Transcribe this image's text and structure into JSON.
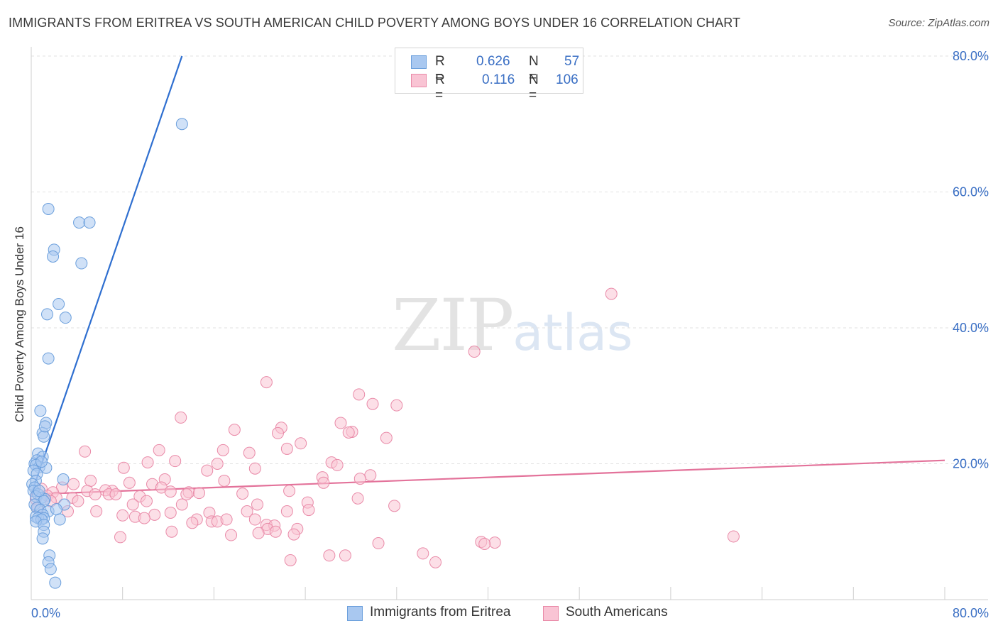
{
  "header": {
    "title": "IMMIGRANTS FROM ERITREA VS SOUTH AMERICAN CHILD POVERTY AMONG BOYS UNDER 16 CORRELATION CHART",
    "source": "Source: ZipAtlas.com"
  },
  "watermark": {
    "zip": "ZIP",
    "atlas": "atlas"
  },
  "legend": {
    "rows": [
      {
        "r_label": "R =",
        "r_value": "0.626",
        "n_label": "N =",
        "n_value": "57",
        "color": "#a9c8f0",
        "border": "#6b9fdc"
      },
      {
        "r_label": "R =",
        "r_value": "0.116",
        "n_label": "N =",
        "n_value": "106",
        "color": "#f9c4d4",
        "border": "#e98aa8"
      }
    ]
  },
  "bottom_legend": [
    {
      "label": "Immigrants from Eritrea",
      "color": "#a9c8f0",
      "border": "#6b9fdc"
    },
    {
      "label": "South Americans",
      "color": "#f9c4d4",
      "border": "#e98aa8"
    }
  ],
  "chart_data": {
    "type": "scatter",
    "title": "IMMIGRANTS FROM ERITREA VS SOUTH AMERICAN CHILD POVERTY AMONG BOYS UNDER 16 CORRELATION CHART",
    "xlabel": "",
    "ylabel": "Child Poverty Among Boys Under 16",
    "xlim": [
      0,
      80
    ],
    "ylim": [
      0,
      80
    ],
    "x_tick_labels": [
      "0.0%",
      "80.0%"
    ],
    "y_tick_labels": [
      "20.0%",
      "40.0%",
      "60.0%",
      "80.0%"
    ],
    "y_ticks": [
      20,
      40,
      60,
      80
    ],
    "grid": true,
    "legend_position": "top-center",
    "series": [
      {
        "name": "Immigrants from Eritrea",
        "color": "#6b9fdc",
        "fill": "#a9c8f0",
        "trend": {
          "x": [
            0,
            13.2
          ],
          "y": [
            15.5,
            80
          ]
        },
        "points": [
          [
            13.2,
            70.0
          ],
          [
            1.5,
            57.5
          ],
          [
            4.2,
            55.5
          ],
          [
            5.1,
            55.5
          ],
          [
            2.0,
            51.5
          ],
          [
            1.9,
            50.5
          ],
          [
            4.4,
            49.5
          ],
          [
            2.4,
            43.5
          ],
          [
            1.4,
            42.0
          ],
          [
            3.0,
            41.5
          ],
          [
            1.5,
            35.5
          ],
          [
            0.8,
            27.8
          ],
          [
            1.3,
            26.0
          ],
          [
            1.0,
            24.5
          ],
          [
            1.1,
            24.0
          ],
          [
            1.2,
            25.5
          ],
          [
            0.6,
            21.5
          ],
          [
            1.0,
            21.0
          ],
          [
            0.5,
            20.5
          ],
          [
            0.3,
            20.0
          ],
          [
            0.7,
            19.5
          ],
          [
            0.4,
            19.8
          ],
          [
            1.3,
            19.4
          ],
          [
            0.2,
            19.0
          ],
          [
            0.5,
            18.5
          ],
          [
            0.4,
            17.5
          ],
          [
            2.8,
            17.7
          ],
          [
            0.1,
            17.0
          ],
          [
            0.3,
            16.5
          ],
          [
            0.2,
            16.0
          ],
          [
            0.6,
            15.5
          ],
          [
            0.9,
            15.0
          ],
          [
            0.4,
            15.2
          ],
          [
            1.2,
            14.8
          ],
          [
            1.1,
            14.5
          ],
          [
            0.3,
            14.0
          ],
          [
            2.9,
            14.0
          ],
          [
            0.5,
            13.5
          ],
          [
            0.8,
            13.2
          ],
          [
            1.5,
            13.0
          ],
          [
            2.2,
            13.3
          ],
          [
            1.0,
            12.5
          ],
          [
            0.4,
            12.2
          ],
          [
            0.6,
            12.0
          ],
          [
            1.1,
            12.0
          ],
          [
            0.9,
            11.8
          ],
          [
            0.4,
            11.5
          ],
          [
            2.5,
            11.8
          ],
          [
            1.1,
            11.0
          ],
          [
            1.1,
            10.0
          ],
          [
            1.0,
            9.0
          ],
          [
            1.6,
            6.5
          ],
          [
            1.5,
            5.5
          ],
          [
            1.7,
            4.5
          ],
          [
            2.1,
            2.5
          ],
          [
            0.7,
            16.0
          ],
          [
            0.9,
            20.3
          ]
        ]
      },
      {
        "name": "South Americans",
        "color": "#e98aa8",
        "fill": "#f9c4d4",
        "trend": {
          "x": [
            0,
            80
          ],
          "y": [
            15.5,
            20.5
          ]
        },
        "points": [
          [
            50.8,
            45.0
          ],
          [
            38.8,
            36.5
          ],
          [
            20.6,
            32.0
          ],
          [
            28.7,
            30.2
          ],
          [
            29.9,
            28.8
          ],
          [
            32.0,
            28.6
          ],
          [
            13.1,
            26.8
          ],
          [
            27.1,
            26.0
          ],
          [
            21.9,
            25.3
          ],
          [
            17.8,
            25.0
          ],
          [
            21.6,
            24.5
          ],
          [
            28.1,
            24.7
          ],
          [
            27.8,
            24.6
          ],
          [
            31.1,
            23.8
          ],
          [
            23.6,
            23.0
          ],
          [
            4.7,
            21.8
          ],
          [
            11.2,
            22.0
          ],
          [
            16.8,
            22.0
          ],
          [
            19.1,
            21.6
          ],
          [
            22.4,
            22.2
          ],
          [
            10.2,
            20.2
          ],
          [
            12.6,
            20.4
          ],
          [
            16.3,
            20.0
          ],
          [
            26.3,
            20.2
          ],
          [
            26.8,
            19.8
          ],
          [
            8.1,
            19.4
          ],
          [
            15.4,
            19.0
          ],
          [
            19.6,
            19.3
          ],
          [
            29.7,
            18.3
          ],
          [
            25.5,
            18.0
          ],
          [
            28.8,
            17.8
          ],
          [
            5.2,
            17.5
          ],
          [
            11.7,
            17.7
          ],
          [
            16.9,
            17.5
          ],
          [
            25.6,
            17.2
          ],
          [
            10.6,
            17.0
          ],
          [
            8.6,
            17.2
          ],
          [
            3.7,
            17.0
          ],
          [
            2.7,
            16.5
          ],
          [
            0.9,
            16.3
          ],
          [
            1.9,
            15.8
          ],
          [
            4.9,
            16.0
          ],
          [
            7.1,
            16.0
          ],
          [
            6.5,
            16.1
          ],
          [
            6.8,
            15.5
          ],
          [
            11.4,
            16.5
          ],
          [
            13.8,
            15.8
          ],
          [
            14.7,
            15.7
          ],
          [
            12.2,
            15.9
          ],
          [
            22.6,
            16.0
          ],
          [
            1.4,
            15.3
          ],
          [
            2.2,
            15.0
          ],
          [
            3.6,
            15.0
          ],
          [
            5.6,
            15.5
          ],
          [
            7.4,
            15.5
          ],
          [
            9.5,
            15.2
          ],
          [
            13.6,
            15.5
          ],
          [
            18.5,
            15.6
          ],
          [
            0.4,
            14.8
          ],
          [
            1.7,
            14.5
          ],
          [
            4.1,
            14.5
          ],
          [
            8.9,
            14.0
          ],
          [
            10.1,
            14.5
          ],
          [
            13.2,
            14.0
          ],
          [
            19.8,
            14.0
          ],
          [
            24.2,
            14.3
          ],
          [
            28.6,
            14.9
          ],
          [
            31.8,
            13.8
          ],
          [
            0.6,
            13.5
          ],
          [
            3.2,
            13.0
          ],
          [
            5.7,
            13.0
          ],
          [
            10.8,
            12.5
          ],
          [
            12.2,
            12.8
          ],
          [
            15.6,
            12.8
          ],
          [
            18.9,
            13.0
          ],
          [
            22.4,
            13.0
          ],
          [
            24.3,
            13.2
          ],
          [
            9.1,
            12.2
          ],
          [
            9.9,
            12.0
          ],
          [
            14.5,
            11.8
          ],
          [
            15.8,
            11.5
          ],
          [
            16.3,
            11.5
          ],
          [
            17.1,
            11.8
          ],
          [
            19.6,
            11.8
          ],
          [
            14.1,
            11.3
          ],
          [
            20.6,
            11.0
          ],
          [
            21.3,
            10.9
          ],
          [
            8.0,
            12.4
          ],
          [
            20.7,
            10.4
          ],
          [
            21.4,
            10.0
          ],
          [
            23.3,
            10.4
          ],
          [
            12.3,
            10.0
          ],
          [
            17.5,
            9.5
          ],
          [
            19.9,
            9.8
          ],
          [
            23.0,
            9.6
          ],
          [
            7.8,
            9.2
          ],
          [
            30.4,
            8.3
          ],
          [
            40.6,
            8.4
          ],
          [
            39.4,
            8.5
          ],
          [
            39.7,
            8.2
          ],
          [
            61.5,
            9.3
          ],
          [
            26.1,
            6.5
          ],
          [
            27.5,
            6.5
          ],
          [
            34.3,
            6.8
          ],
          [
            22.7,
            5.8
          ],
          [
            35.4,
            5.5
          ]
        ]
      }
    ]
  }
}
